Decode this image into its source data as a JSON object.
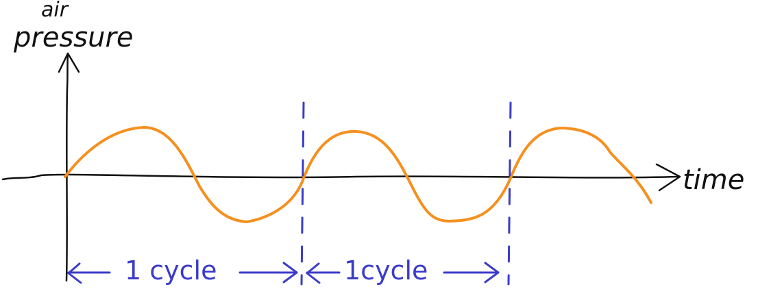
{
  "labels": {
    "y_axis_line1": "air",
    "y_axis_line2": "pressure",
    "x_axis": "time",
    "cycle_1": "1 cycle",
    "cycle_2": "1cycle"
  },
  "colors": {
    "ink": "#111111",
    "wave": "#f5901e",
    "annotation": "#3b3bc8",
    "background": "#ffffff"
  },
  "wave": {
    "cycles_shown": 2.8
  }
}
